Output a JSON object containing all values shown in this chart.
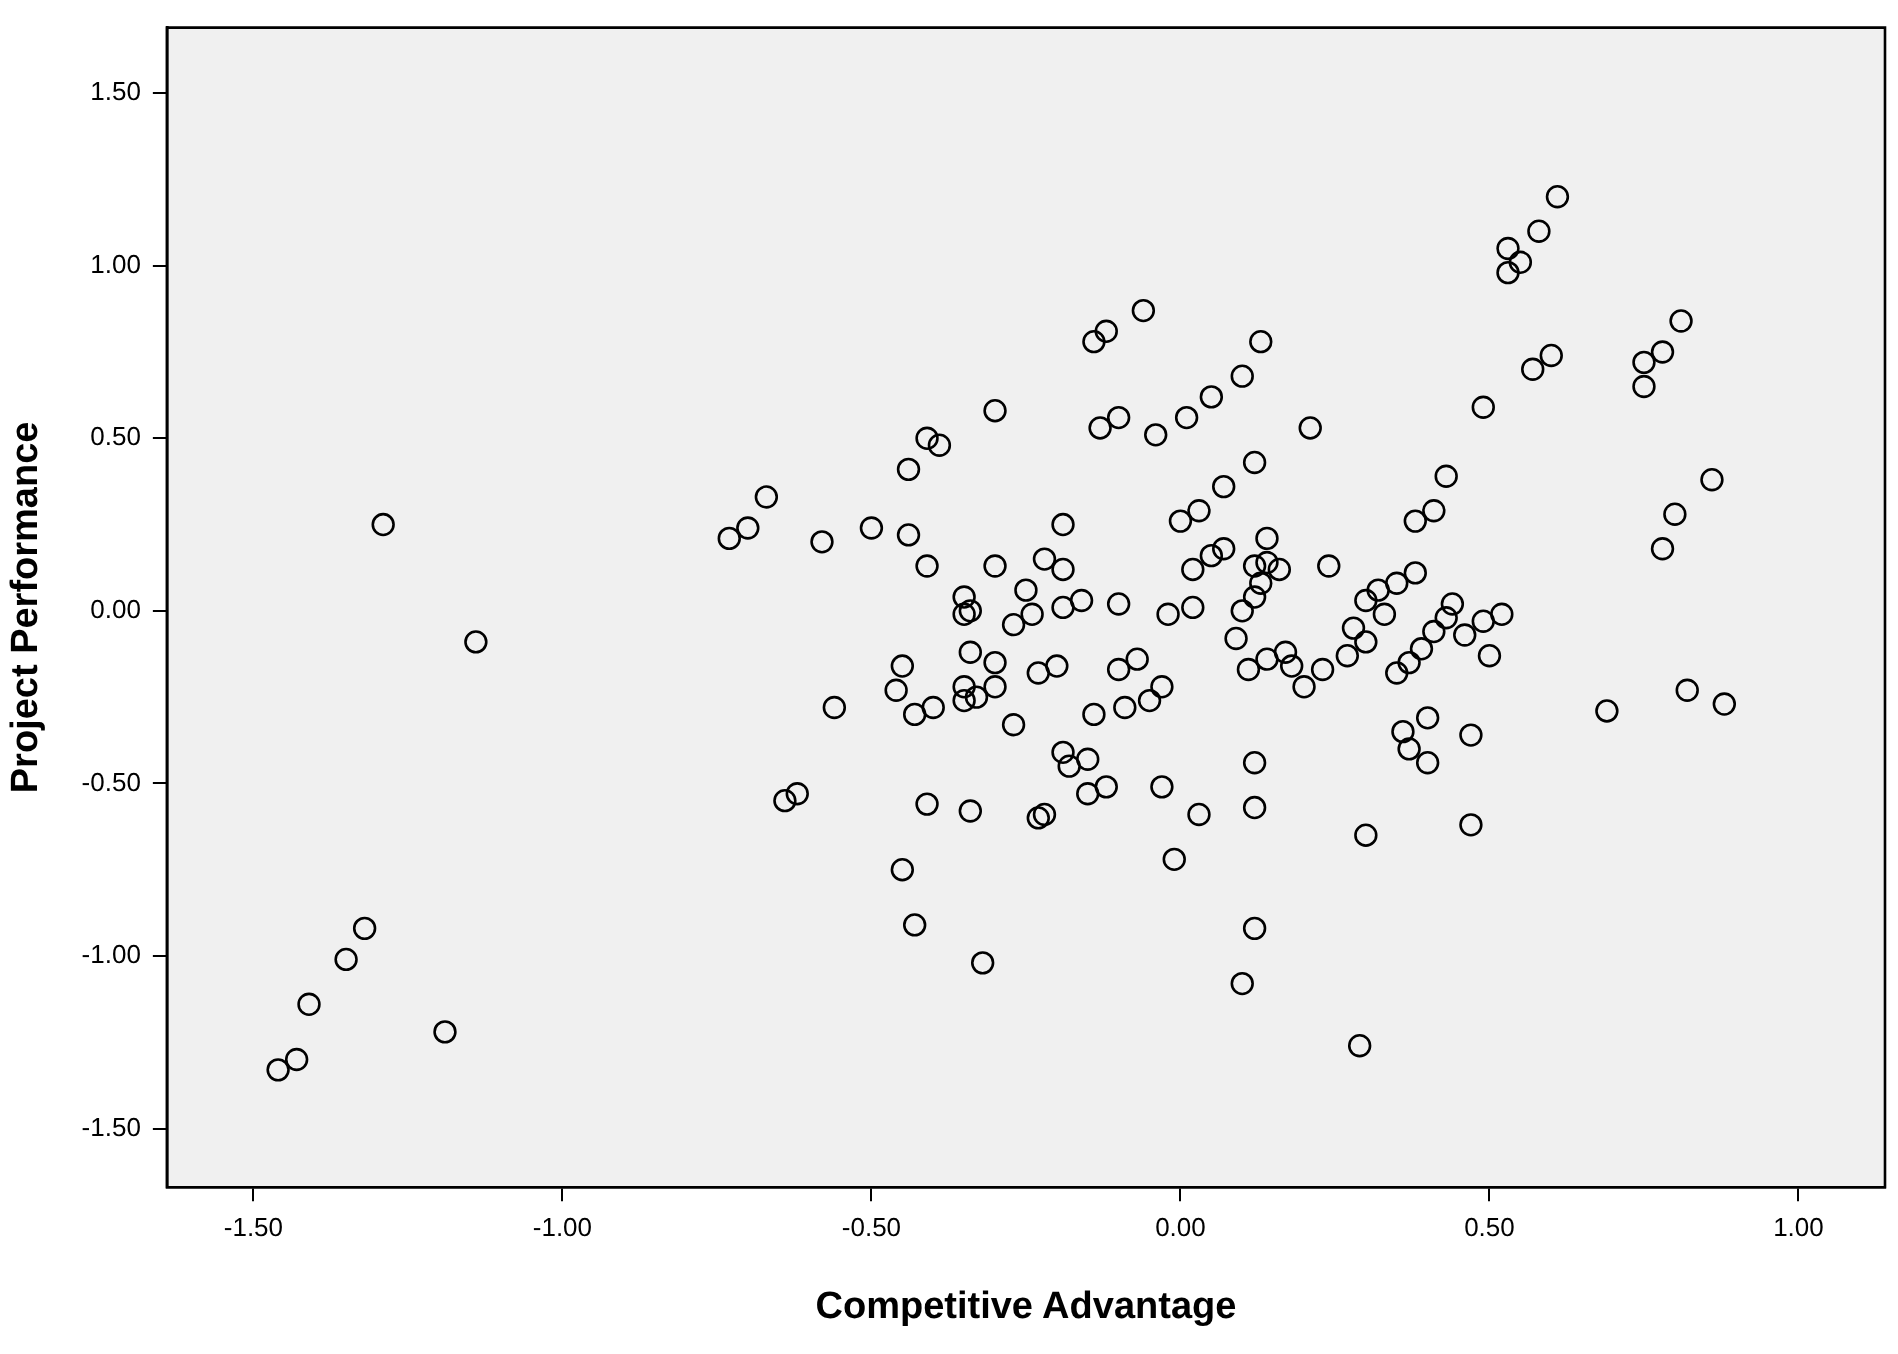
{
  "chart_data": {
    "type": "scatter",
    "xlabel": "Competitive Advantage",
    "ylabel": "Project Performance",
    "marker": "circle",
    "xlim": [
      -1.64,
      1.14
    ],
    "ylim": [
      -1.67,
      1.69
    ],
    "xticks": [
      {
        "value": -1.5,
        "label": "-1.50"
      },
      {
        "value": -1,
        "label": "-1.00"
      },
      {
        "value": -0.5,
        "label": "-0.50"
      },
      {
        "value": 0,
        "label": "0.00"
      },
      {
        "value": 0.5,
        "label": "0.50"
      },
      {
        "value": 1,
        "label": "1.00"
      }
    ],
    "yticks": [
      {
        "value": -1.5,
        "label": "-1.50"
      },
      {
        "value": -1,
        "label": "-1.00"
      },
      {
        "value": -0.5,
        "label": "-0.50"
      },
      {
        "value": 0,
        "label": "0.00"
      },
      {
        "value": 0.5,
        "label": "0.50"
      },
      {
        "value": 1,
        "label": "1.00"
      },
      {
        "value": 1.5,
        "label": "1.50"
      }
    ],
    "series": [
      {
        "color": "#000000",
        "x": [
          -1.46,
          -1.43,
          -1.41,
          -1.35,
          -1.32,
          -1.19,
          -1.29,
          -1.14,
          -0.3,
          -0.41,
          -0.39,
          -0.44,
          -0.67,
          -0.7,
          -0.73,
          -0.58,
          -0.5,
          -0.44,
          -0.41,
          -0.3,
          -0.35,
          -0.35,
          -0.34,
          -0.27,
          -0.25,
          -0.22,
          -0.24,
          -0.19,
          -0.45,
          -0.46,
          -0.43,
          -0.4,
          -0.34,
          -0.3,
          -0.3,
          -0.35,
          -0.33,
          -0.35,
          -0.27,
          -0.23,
          -0.2,
          -0.56,
          -0.64,
          -0.62,
          -0.41,
          -0.34,
          -0.23,
          -0.22,
          -0.45,
          -0.43,
          -0.32,
          -0.19,
          -0.18,
          -0.06,
          -0.12,
          -0.14,
          0.13,
          0.1,
          0.05,
          0.01,
          -0.1,
          -0.13,
          -0.04,
          0.21,
          0.12,
          0.07,
          0.03,
          0.0,
          0.43,
          0.41,
          0.38,
          0.14,
          0.07,
          0.05,
          0.02,
          0.12,
          0.14,
          0.16,
          0.24,
          0.13,
          0.12,
          0.1,
          0.09,
          0.38,
          0.35,
          0.32,
          0.3,
          0.33,
          0.28,
          0.3,
          0.27,
          0.35,
          0.37,
          0.39,
          0.41,
          0.43,
          0.11,
          0.14,
          0.17,
          0.18,
          0.2,
          0.23,
          -0.02,
          0.02,
          -0.1,
          -0.16,
          -0.19,
          -0.19,
          -0.1,
          -0.07,
          -0.14,
          -0.09,
          -0.05,
          -0.03,
          -0.15,
          -0.15,
          -0.12,
          -0.03,
          0.03,
          -0.01,
          0.12,
          0.12,
          0.12,
          0.1,
          0.29,
          0.3,
          0.4,
          0.36,
          0.37,
          0.4,
          0.61,
          0.58,
          0.55,
          0.53,
          0.53,
          0.6,
          0.57,
          0.49,
          0.81,
          0.78,
          0.75,
          0.75,
          0.86,
          0.8,
          0.78,
          0.52,
          0.5,
          0.46,
          0.49,
          0.44,
          0.47,
          0.69,
          0.82,
          0.88,
          0.47
        ],
        "values": [
          -1.33,
          -1.3,
          -1.14,
          -1.01,
          -0.92,
          -1.22,
          0.25,
          -0.09,
          0.58,
          0.5,
          0.48,
          0.41,
          0.33,
          0.24,
          0.21,
          0.2,
          0.24,
          0.22,
          0.13,
          0.13,
          0.04,
          -0.01,
          0.0,
          -0.04,
          0.06,
          0.15,
          -0.01,
          0.25,
          -0.16,
          -0.23,
          -0.3,
          -0.28,
          -0.12,
          -0.15,
          -0.22,
          -0.22,
          -0.25,
          -0.26,
          -0.33,
          -0.18,
          -0.16,
          -0.28,
          -0.55,
          -0.53,
          -0.56,
          -0.58,
          -0.6,
          -0.59,
          -0.75,
          -0.91,
          -1.02,
          -0.41,
          -0.45,
          0.87,
          0.81,
          0.78,
          0.78,
          0.68,
          0.62,
          0.56,
          0.56,
          0.53,
          0.51,
          0.53,
          0.43,
          0.36,
          0.29,
          0.26,
          0.39,
          0.29,
          0.26,
          0.21,
          0.18,
          0.16,
          0.12,
          0.13,
          0.14,
          0.12,
          0.13,
          0.08,
          0.04,
          0.0,
          -0.08,
          0.11,
          0.08,
          0.06,
          0.03,
          -0.01,
          -0.05,
          -0.09,
          -0.13,
          -0.18,
          -0.15,
          -0.11,
          -0.06,
          -0.02,
          -0.17,
          -0.14,
          -0.12,
          -0.16,
          -0.22,
          -0.17,
          -0.01,
          0.01,
          0.02,
          0.03,
          0.12,
          0.01,
          -0.17,
          -0.14,
          -0.3,
          -0.28,
          -0.26,
          -0.22,
          -0.43,
          -0.53,
          -0.51,
          -0.51,
          -0.59,
          -0.72,
          -0.44,
          -0.57,
          -0.92,
          -1.08,
          -1.26,
          -0.65,
          -0.31,
          -0.35,
          -0.4,
          -0.44,
          1.2,
          1.1,
          1.01,
          1.05,
          0.98,
          0.74,
          0.7,
          0.59,
          0.84,
          0.75,
          0.72,
          0.65,
          0.38,
          0.28,
          0.18,
          -0.01,
          -0.13,
          -0.07,
          -0.03,
          0.02,
          -0.36,
          -0.29,
          -0.23,
          -0.27,
          -0.62
        ]
      }
    ]
  }
}
